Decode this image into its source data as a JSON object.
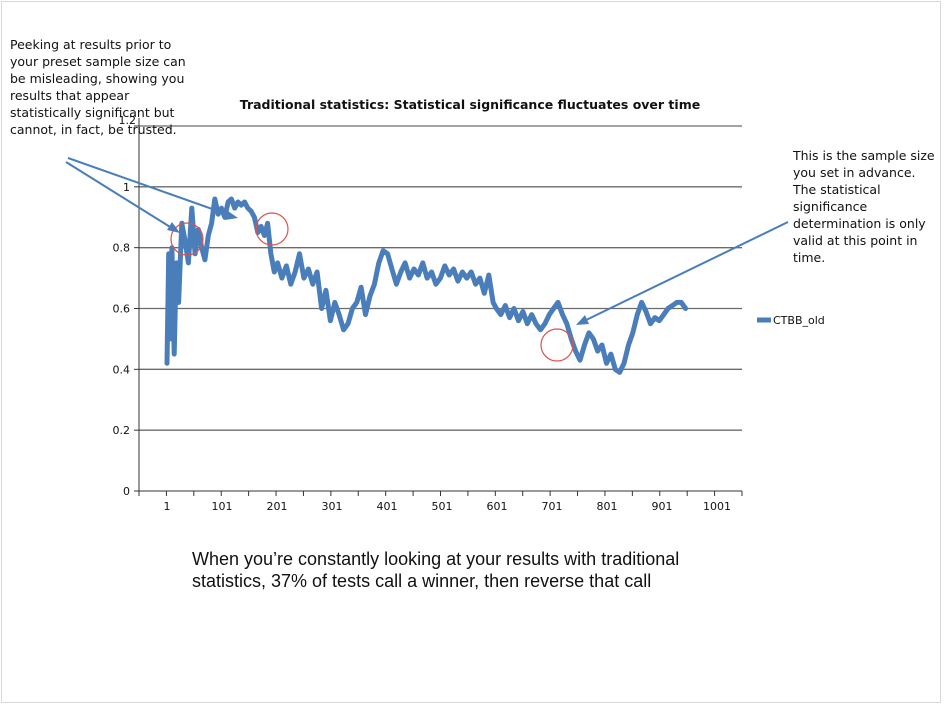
{
  "chart_data": {
    "type": "line",
    "title": "Traditional statistics: Statistical significance fluctuates over time",
    "xlabel": "",
    "ylabel": "",
    "ylim": [
      0,
      1.2
    ],
    "yticks": [
      "0",
      "0.2",
      "0.4",
      "0.6",
      "0.8",
      "1",
      "1.2"
    ],
    "xticks": [
      "1",
      "101",
      "201",
      "301",
      "401",
      "501",
      "601",
      "701",
      "801",
      "901",
      "1001"
    ],
    "grid": true,
    "legend_position": "right",
    "series": [
      {
        "name": "CTBB_old",
        "color": "#4a7ebb",
        "x": [
          1,
          4,
          7,
          10,
          14,
          18,
          22,
          28,
          34,
          40,
          46,
          52,
          58,
          64,
          70,
          76,
          82,
          88,
          94,
          100,
          106,
          112,
          118,
          124,
          130,
          136,
          142,
          148,
          154,
          160,
          166,
          172,
          178,
          184,
          190,
          196,
          202,
          210,
          218,
          226,
          234,
          242,
          250,
          258,
          266,
          274,
          282,
          290,
          298,
          306,
          314,
          322,
          330,
          338,
          346,
          354,
          362,
          370,
          378,
          386,
          394,
          402,
          410,
          418,
          426,
          434,
          442,
          450,
          458,
          466,
          474,
          482,
          490,
          498,
          506,
          514,
          522,
          530,
          538,
          546,
          554,
          562,
          570,
          578,
          586,
          594,
          600,
          608,
          616,
          624,
          632,
          640,
          648,
          656,
          664,
          672,
          680,
          688,
          696,
          704,
          712,
          720,
          728,
          736,
          744,
          752,
          760,
          768,
          776,
          784,
          792,
          800,
          808,
          816,
          824,
          832,
          840,
          848,
          856,
          864,
          872,
          880,
          888,
          896,
          904,
          912,
          920,
          928,
          936,
          944
        ],
        "values": [
          0.42,
          0.78,
          0.5,
          0.8,
          0.45,
          0.75,
          0.62,
          0.88,
          0.82,
          0.75,
          0.93,
          0.78,
          0.86,
          0.8,
          0.76,
          0.84,
          0.88,
          0.96,
          0.91,
          0.93,
          0.9,
          0.95,
          0.96,
          0.93,
          0.95,
          0.94,
          0.95,
          0.93,
          0.92,
          0.9,
          0.85,
          0.87,
          0.84,
          0.88,
          0.78,
          0.72,
          0.75,
          0.7,
          0.74,
          0.68,
          0.72,
          0.78,
          0.7,
          0.73,
          0.68,
          0.72,
          0.6,
          0.66,
          0.56,
          0.62,
          0.58,
          0.53,
          0.55,
          0.6,
          0.62,
          0.67,
          0.58,
          0.64,
          0.68,
          0.75,
          0.79,
          0.78,
          0.73,
          0.68,
          0.72,
          0.75,
          0.7,
          0.73,
          0.71,
          0.75,
          0.7,
          0.72,
          0.68,
          0.7,
          0.74,
          0.71,
          0.73,
          0.69,
          0.72,
          0.7,
          0.72,
          0.68,
          0.7,
          0.65,
          0.71,
          0.62,
          0.6,
          0.58,
          0.61,
          0.57,
          0.6,
          0.56,
          0.59,
          0.55,
          0.58,
          0.55,
          0.53,
          0.55,
          0.58,
          0.6,
          0.62,
          0.58,
          0.55,
          0.5,
          0.46,
          0.43,
          0.48,
          0.52,
          0.5,
          0.46,
          0.48,
          0.42,
          0.45,
          0.4,
          0.39,
          0.42,
          0.48,
          0.52,
          0.58,
          0.62,
          0.59,
          0.55,
          0.57,
          0.56,
          0.58,
          0.6,
          0.61,
          0.62,
          0.62,
          0.6
        ]
      }
    ]
  },
  "annotations": {
    "left_note": "Peeking at results prior to\nyour preset sample size can\nbe misleading, showing you\nresults that appear\nstatistically significant but\ncannot, in fact, be trusted.",
    "right_note": "This is the sample size\nyou set in advance.\nThe statistical\nsignificance\ndetermination is only\nvalid at this point in\ntime."
  },
  "caption": "When you’re constantly looking at your results with traditional\nstatistics, 37% of tests call a winner, then reverse that call"
}
